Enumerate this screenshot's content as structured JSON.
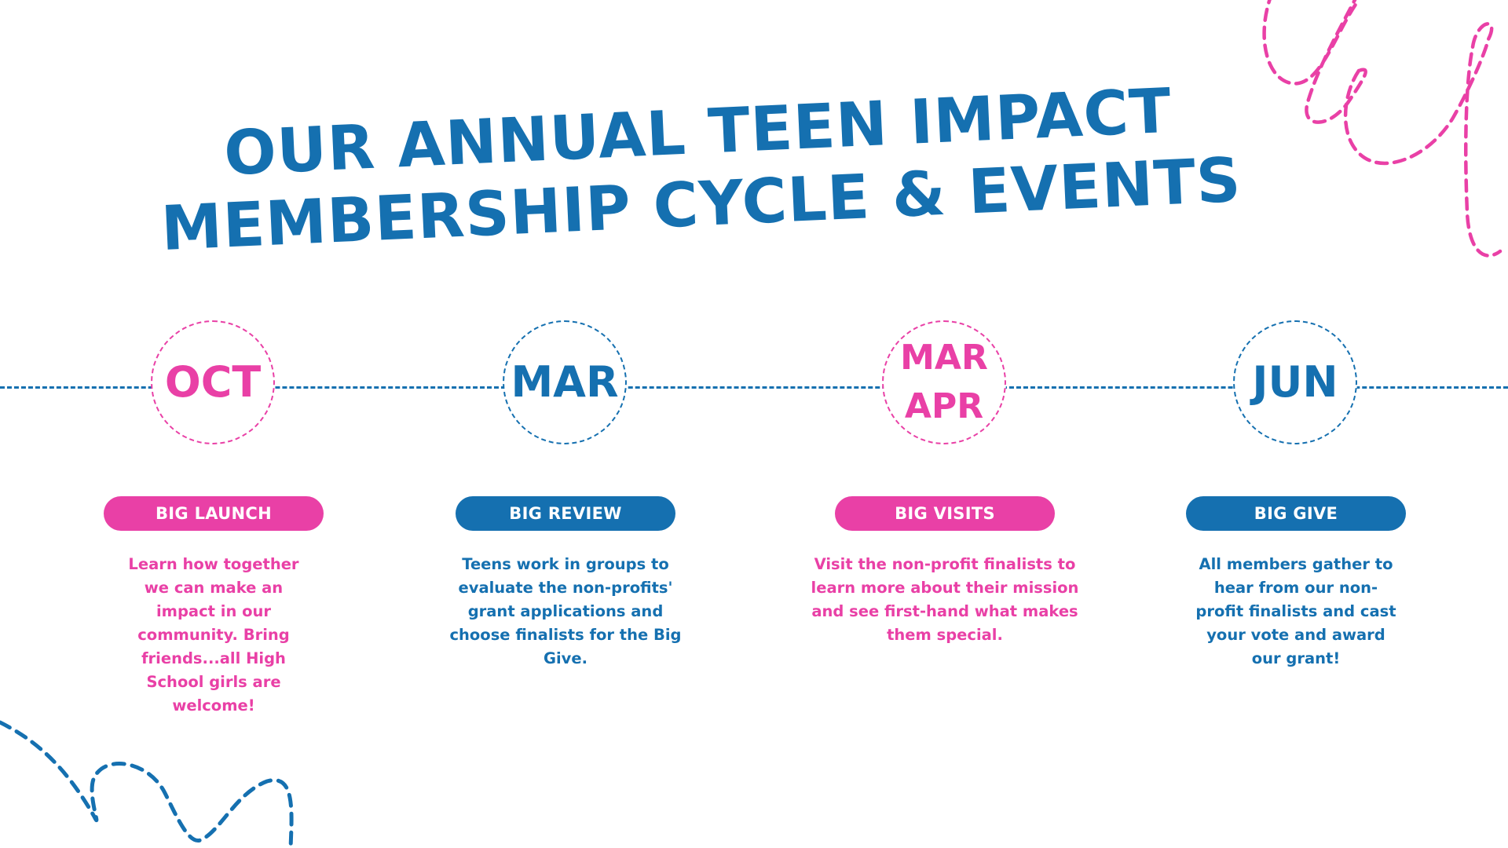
{
  "colors": {
    "blue": "#1570b0",
    "pink": "#e940a6"
  },
  "title": {
    "line1": "OUR ANNUAL TEEN IMPACT",
    "line2": "MEMBERSHIP CYCLE & EVENTS"
  },
  "stages": [
    {
      "months": [
        "OCT"
      ],
      "label": "BIG LAUNCH",
      "lines": [
        "Learn how together",
        "we can make an",
        "impact in our",
        "community. Bring",
        "friends...all High",
        "School girls are",
        "welcome!"
      ]
    },
    {
      "months": [
        "MAR"
      ],
      "label": "BIG REVIEW",
      "lines": [
        "Teens work in groups to",
        "evaluate the non-profits'",
        "grant applications and",
        "choose finalists for the Big",
        "Give."
      ]
    },
    {
      "months": [
        "MAR",
        "APR"
      ],
      "label": "BIG VISITS",
      "lines": [
        "Visit the non-profit finalists to",
        "learn more about their mission",
        "and see first-hand what makes",
        "them special."
      ]
    },
    {
      "months": [
        "JUN"
      ],
      "label": "BIG GIVE",
      "lines": [
        "All members gather to",
        "hear from our non-",
        "profit finalists and cast",
        "your vote and award",
        "our grant!"
      ]
    }
  ],
  "decorations": [
    {
      "icon": "pink-dashed-loop-squiggle-icon"
    },
    {
      "icon": "blue-dashed-wave-squiggle-icon"
    }
  ]
}
